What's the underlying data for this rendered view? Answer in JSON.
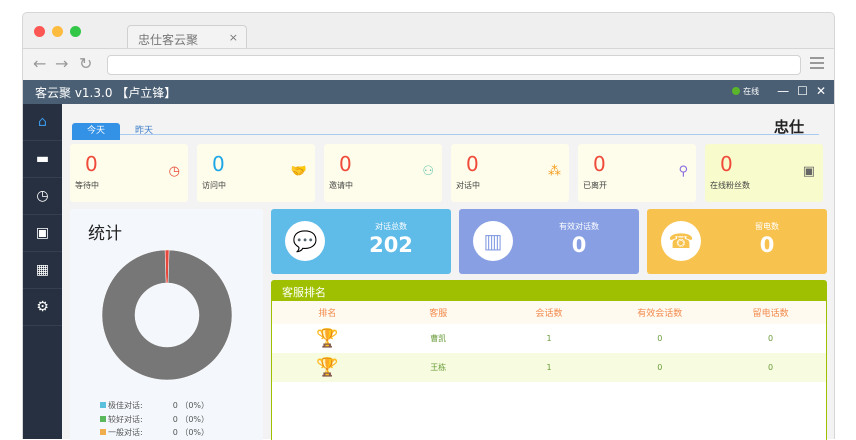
{
  "browser": {
    "tab_title": "忠仕客云聚",
    "close": "×"
  },
  "app": {
    "title": "客云聚 v1.3.0 【卢立锋】",
    "status": "在线",
    "brand": "忠仕"
  },
  "sidebar": {
    "items": [
      {
        "icon": "home-icon"
      },
      {
        "icon": "chat-icon"
      },
      {
        "icon": "clock-icon"
      },
      {
        "icon": "briefcase-icon"
      },
      {
        "icon": "grid-icon"
      },
      {
        "icon": "gear-icon"
      }
    ]
  },
  "tabs": [
    "今天",
    "昨天"
  ],
  "cards": [
    {
      "value": "0",
      "label": "等待中",
      "icon": "clock-icon"
    },
    {
      "value": "0",
      "label": "访问中",
      "icon": "handshake-icon"
    },
    {
      "value": "0",
      "label": "邀请中",
      "icon": "add-user-icon"
    },
    {
      "value": "0",
      "label": "对话中",
      "icon": "group-icon"
    },
    {
      "value": "0",
      "label": "已离开",
      "icon": "user-leave-icon"
    },
    {
      "value": "0",
      "label": "在线粉丝数",
      "icon": "profile-icon"
    }
  ],
  "stats": {
    "title": "统计",
    "legend": [
      {
        "label": "极佳对话:",
        "value": "0 （0%）",
        "color": "#5bc0de"
      },
      {
        "label": "较好对话:",
        "value": "0 （0%）",
        "color": "#5cb85c"
      },
      {
        "label": "一般对话:",
        "value": "0 （0%）",
        "color": "#f0ad4e"
      }
    ]
  },
  "chart_data": {
    "type": "pie",
    "donut": true,
    "slices": [
      {
        "value": 0.01,
        "color": "#e8473b"
      },
      {
        "value": 0.99,
        "color": "#777777"
      }
    ]
  },
  "totals": [
    {
      "label": "对话总数",
      "value": "202",
      "color": "#5fbbe8"
    },
    {
      "label": "有效对话数",
      "value": "0",
      "color": "#88a0e3"
    },
    {
      "label": "留电数",
      "value": "0",
      "color": "#f8c24e"
    }
  ],
  "ranking": {
    "title": "客服排名",
    "headers": [
      "排名",
      "客服",
      "会话数",
      "有效会话数",
      "留电话数"
    ],
    "rows": [
      {
        "rank_icon": "gold-trophy-icon",
        "name": "曹凯",
        "sessions": "1",
        "valid": "0",
        "phones": "0"
      },
      {
        "rank_icon": "silver-trophy-icon",
        "name": "王栋",
        "sessions": "1",
        "valid": "0",
        "phones": "0"
      }
    ]
  }
}
